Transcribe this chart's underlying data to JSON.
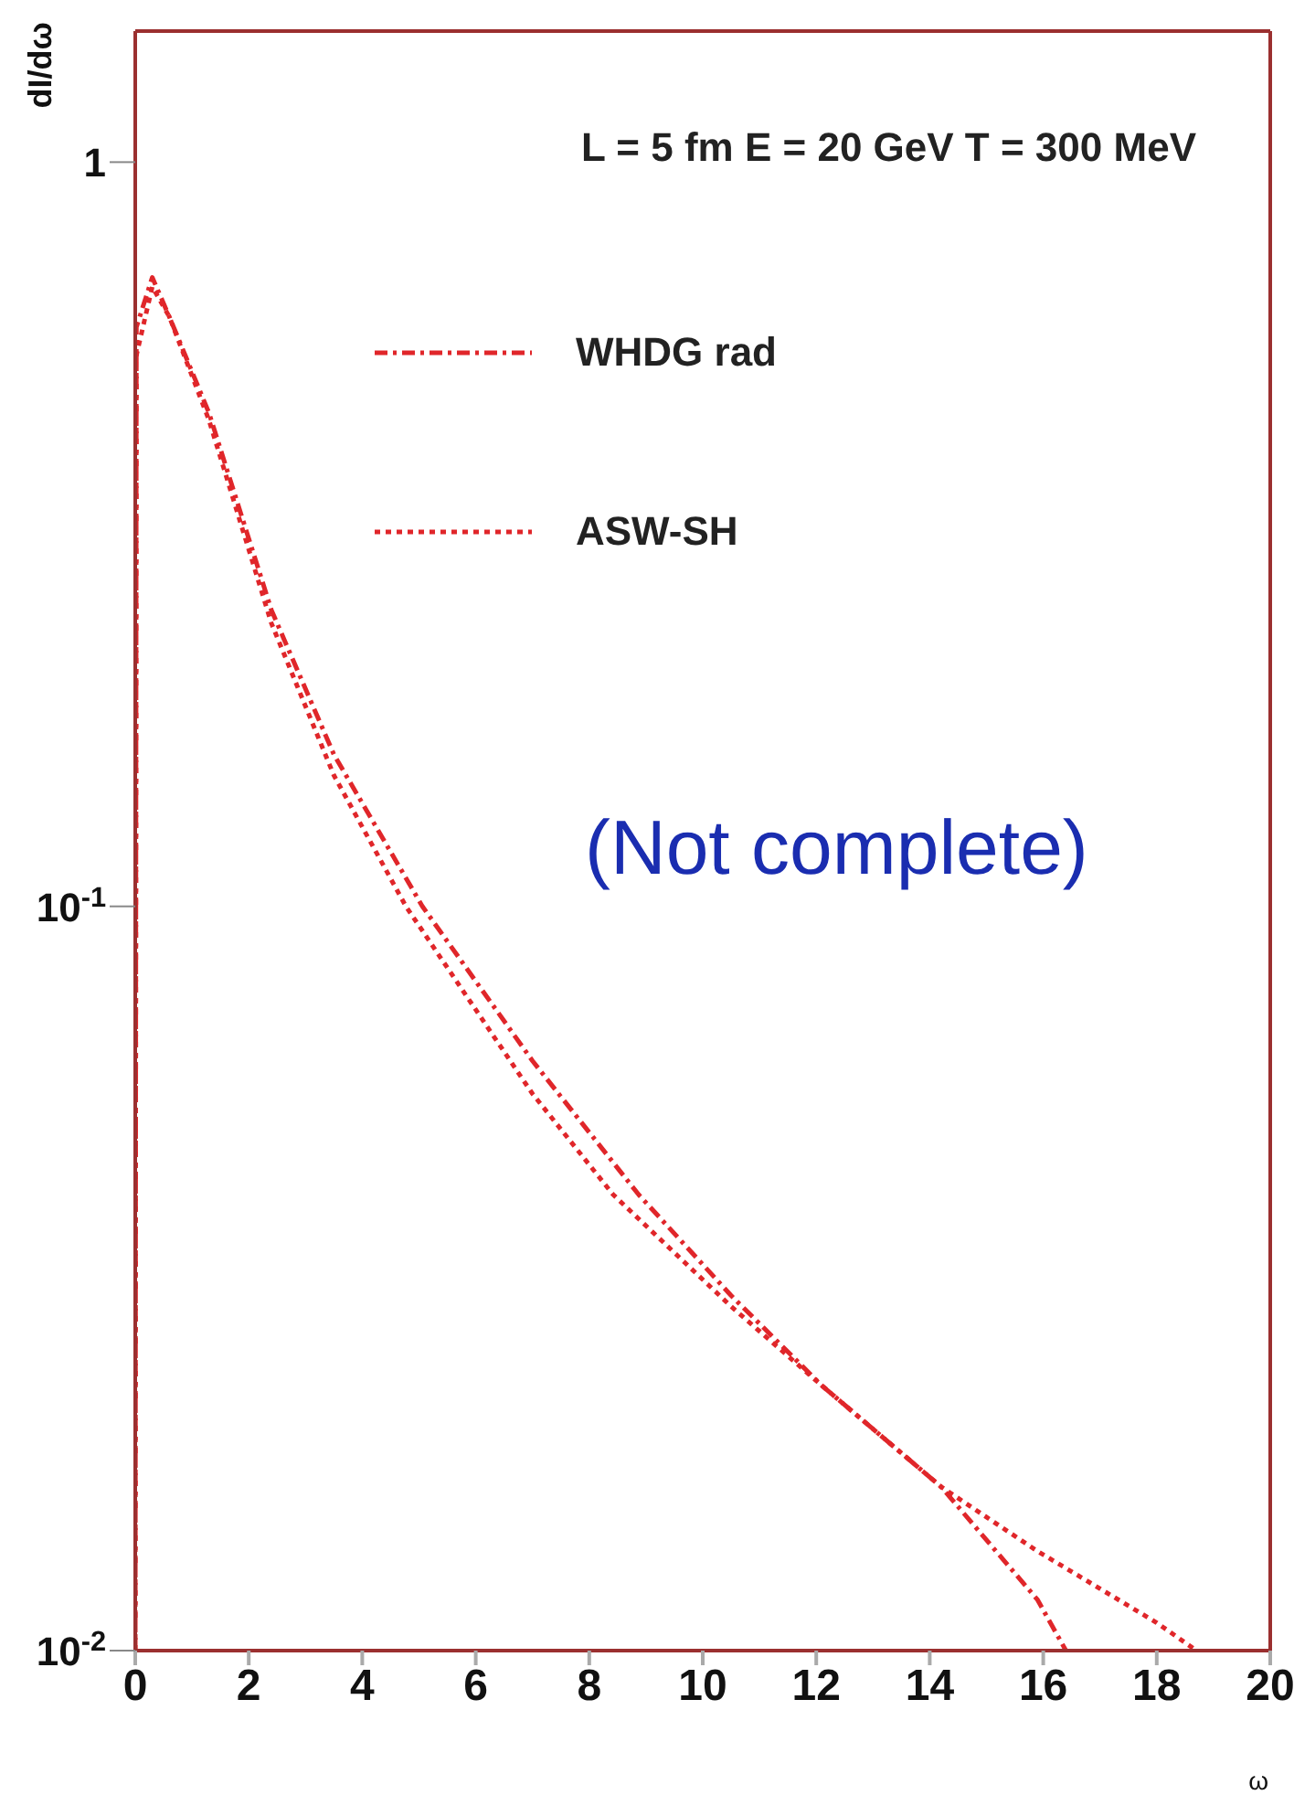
{
  "chart_data": {
    "type": "line",
    "xlabel": "ω",
    "ylabel": "dI/dω",
    "log": "y",
    "xlim": [
      0,
      20
    ],
    "xticks": [
      0,
      2,
      4,
      6,
      8,
      10,
      12,
      14,
      16,
      18,
      20
    ],
    "ylim": [
      0.01,
      1.5
    ],
    "yticks": [
      {
        "value": 0.01,
        "label": "10$^{-2}$"
      },
      {
        "value": 0.1,
        "label": "10$^{-1}$"
      },
      1
    ],
    "legend": "top left",
    "grid": false,
    "marker": "none",
    "annotations": [
      "L = 5 fm  E = 20 GeV  T = 300 MeV",
      "(Not complete)"
    ],
    "series": [
      {
        "name": "WHDG rad",
        "color": "#e0262a",
        "line_style": "dashed",
        "x": [
          0,
          0.02,
          0.3,
          0.6,
          1.3,
          2.4,
          3.5,
          5.06,
          7,
          8.87,
          10.5,
          12.1,
          14.2,
          15.9,
          16.4
        ],
        "values": [
          0.01,
          0.6,
          0.7,
          0.62,
          0.46,
          0.25,
          0.16,
          0.1,
          0.062,
          0.041,
          0.03,
          0.0227,
          0.0166,
          0.0117,
          0.01
        ]
      },
      {
        "name": "ASW-SH",
        "color": "#e0262a",
        "line_style": "dotted",
        "x": [
          0,
          0.02,
          0.3,
          0.6,
          1.3,
          2.4,
          3.5,
          4.77,
          7,
          8.42,
          10.5,
          12.1,
          14.2,
          15.9,
          18,
          18.7
        ],
        "values": [
          0.01,
          0.55,
          0.68,
          0.62,
          0.45,
          0.24,
          0.15,
          0.1,
          0.056,
          0.041,
          0.029,
          0.0227,
          0.0166,
          0.0136,
          0.0109,
          0.01
        ]
      }
    ]
  }
}
